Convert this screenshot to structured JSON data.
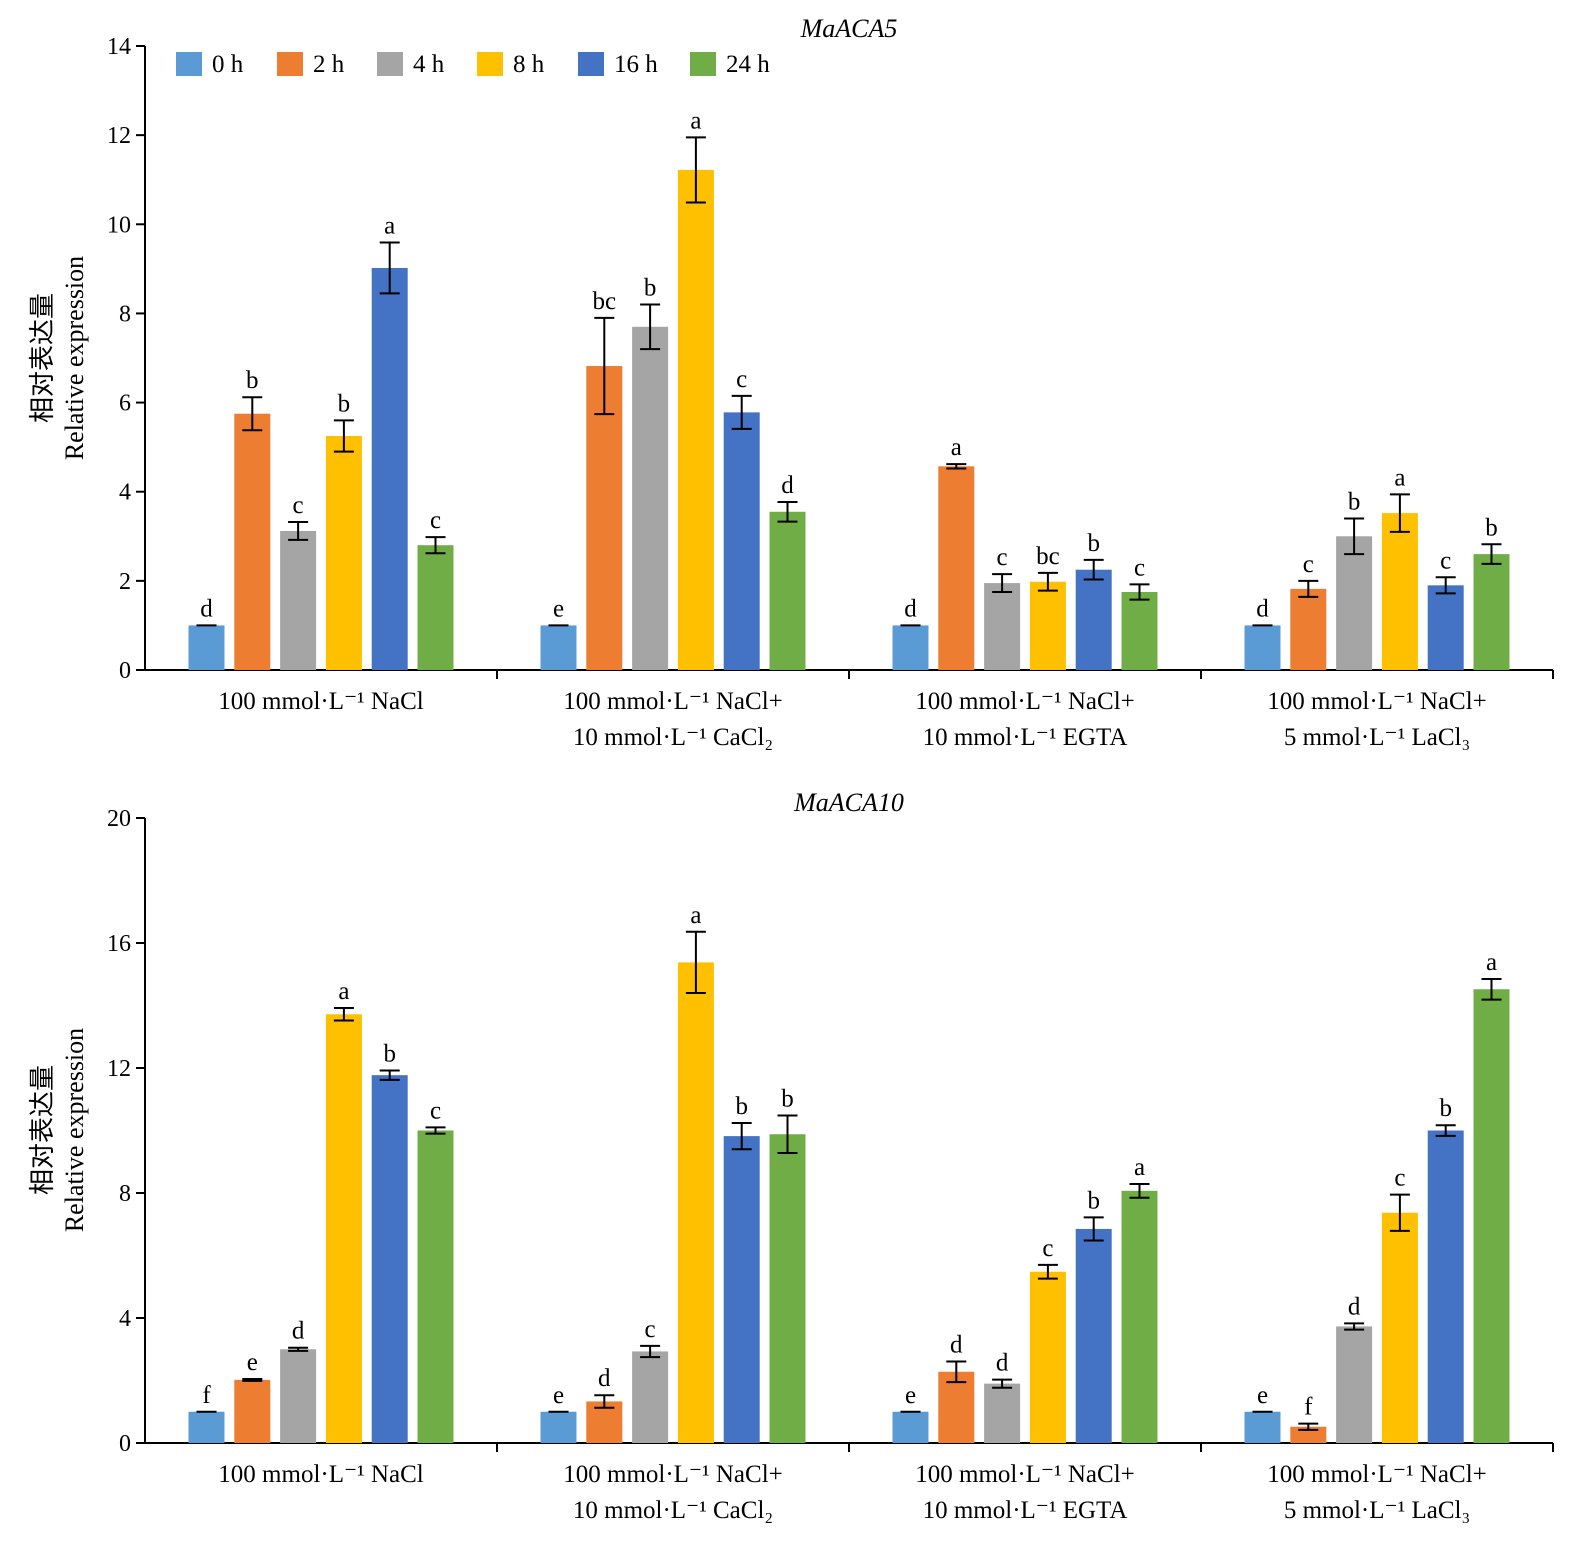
{
  "legend": [
    {
      "label": "0 h",
      "color": "#5B9BD5"
    },
    {
      "label": "2 h",
      "color": "#ED7D31"
    },
    {
      "label": "4 h",
      "color": "#A5A5A5"
    },
    {
      "label": "8 h",
      "color": "#FFC000"
    },
    {
      "label": "16 h",
      "color": "#4472C4"
    },
    {
      "label": "24 h",
      "color": "#70AD47"
    }
  ],
  "chart_data": [
    {
      "type": "bar",
      "title": "MaACA5",
      "ylabel_lines": [
        "相对表达量",
        "Relative expression"
      ],
      "ylim": [
        0,
        14
      ],
      "yticks": [
        0,
        2,
        4,
        6,
        8,
        10,
        12,
        14
      ],
      "legend_position": "top-left",
      "categories": [
        [
          "100 mmol·L⁻¹ NaCl"
        ],
        [
          "100 mmol·L⁻¹ NaCl+",
          "10 mmol·L⁻¹ CaCl₂"
        ],
        [
          "100 mmol·L⁻¹ NaCl+",
          "10 mmol·L⁻¹ EGTA"
        ],
        [
          "100 mmol·L⁻¹ NaCl+",
          "5 mmol·L⁻¹ LaCl₃"
        ]
      ],
      "series": [
        {
          "name": "0 h",
          "values": [
            1.0,
            1.0,
            1.0,
            1.0
          ],
          "errors": [
            0,
            0,
            0,
            0
          ],
          "labels": [
            "d",
            "e",
            "d",
            "d"
          ]
        },
        {
          "name": "2 h",
          "values": [
            5.75,
            6.82,
            4.57,
            1.82
          ],
          "errors": [
            0.37,
            1.08,
            0.05,
            0.18
          ],
          "labels": [
            "b",
            "bc",
            "a",
            "c"
          ]
        },
        {
          "name": "4 h",
          "values": [
            3.12,
            7.7,
            1.95,
            3.0
          ],
          "errors": [
            0.2,
            0.5,
            0.2,
            0.4
          ],
          "labels": [
            "c",
            "b",
            "c",
            "b"
          ]
        },
        {
          "name": "8 h",
          "values": [
            5.25,
            11.22,
            1.98,
            3.52
          ],
          "errors": [
            0.35,
            0.73,
            0.2,
            0.42
          ],
          "labels": [
            "b",
            "a",
            "bc",
            "a"
          ]
        },
        {
          "name": "16 h",
          "values": [
            9.02,
            5.78,
            2.25,
            1.9
          ],
          "errors": [
            0.57,
            0.37,
            0.22,
            0.18
          ],
          "labels": [
            "a",
            "c",
            "b",
            "c"
          ]
        },
        {
          "name": "24 h",
          "values": [
            2.8,
            3.55,
            1.75,
            2.6
          ],
          "errors": [
            0.18,
            0.22,
            0.17,
            0.22
          ],
          "labels": [
            "c",
            "d",
            "c",
            "b"
          ]
        }
      ]
    },
    {
      "type": "bar",
      "title": "MaACA10",
      "ylabel_lines": [
        "相对表达量",
        "Relative expression"
      ],
      "ylim": [
        0,
        20
      ],
      "yticks": [
        0,
        4,
        8,
        12,
        16,
        20
      ],
      "categories": [
        [
          "100 mmol·L⁻¹ NaCl"
        ],
        [
          "100 mmol·L⁻¹ NaCl+",
          "10 mmol·L⁻¹ CaCl₂"
        ],
        [
          "100 mmol·L⁻¹ NaCl+",
          "10 mmol·L⁻¹ EGTA"
        ],
        [
          "100 mmol·L⁻¹ NaCl+",
          "5 mmol·L⁻¹ LaCl₃"
        ]
      ],
      "series": [
        {
          "name": "0 h",
          "values": [
            1.0,
            1.0,
            1.0,
            1.0
          ],
          "errors": [
            0,
            0,
            0,
            0
          ],
          "labels": [
            "f",
            "e",
            "e",
            "e"
          ]
        },
        {
          "name": "2 h",
          "values": [
            2.02,
            1.33,
            2.28,
            0.52
          ],
          "errors": [
            0.03,
            0.2,
            0.33,
            0.1
          ],
          "labels": [
            "e",
            "d",
            "d",
            "f"
          ]
        },
        {
          "name": "4 h",
          "values": [
            3.0,
            2.93,
            1.9,
            3.73
          ],
          "errors": [
            0.05,
            0.18,
            0.13,
            0.1
          ],
          "labels": [
            "d",
            "c",
            "d",
            "d"
          ]
        },
        {
          "name": "8 h",
          "values": [
            13.72,
            15.38,
            5.48,
            7.37
          ],
          "errors": [
            0.2,
            0.98,
            0.22,
            0.58
          ],
          "labels": [
            "a",
            "a",
            "c",
            "c"
          ]
        },
        {
          "name": "16 h",
          "values": [
            11.77,
            9.82,
            6.85,
            10.0
          ],
          "errors": [
            0.15,
            0.42,
            0.37,
            0.17
          ],
          "labels": [
            "b",
            "b",
            "b",
            "b"
          ]
        },
        {
          "name": "24 h",
          "values": [
            10.0,
            9.88,
            8.07,
            14.52
          ],
          "errors": [
            0.1,
            0.6,
            0.22,
            0.33
          ],
          "labels": [
            "c",
            "b",
            "a",
            "a"
          ]
        }
      ]
    }
  ]
}
